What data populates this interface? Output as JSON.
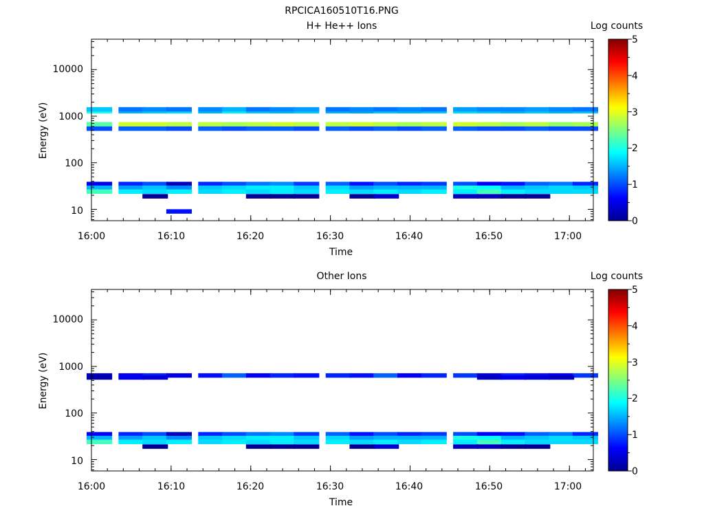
{
  "figure_title": "RPCICA160510T16.PNG",
  "chart_data": [
    {
      "type": "heatmap",
      "title": "H+ He++ Ions",
      "xlabel": "Time",
      "ylabel": "Energy (eV)",
      "x_ticks": [
        "16:00",
        "16:10",
        "16:20",
        "16:30",
        "16:40",
        "16:50",
        "17:00"
      ],
      "xlim": [
        "16:00",
        "17:03"
      ],
      "y_scale": "log",
      "y_ticks": [
        "10",
        "100",
        "1000",
        "10000"
      ],
      "ylim": [
        5.7,
        45000
      ],
      "colorbar": {
        "label": "Log counts",
        "ticks": [
          "0",
          "1",
          "2",
          "3",
          "4",
          "5"
        ],
        "range": [
          0,
          5
        ],
        "colormap": "jet"
      },
      "time_bins": [
        "16:01",
        "16:05",
        "16:08",
        "16:11",
        "16:15",
        "16:18",
        "16:21",
        "16:24",
        "16:27",
        "16:31",
        "16:34",
        "16:37",
        "16:40",
        "16:43",
        "16:47",
        "16:50",
        "16:53",
        "16:56",
        "16:59",
        "17:02"
      ],
      "bands": [
        {
          "energy_ev": 600,
          "values": [
            2.2,
            2.8,
            2.8,
            2.6,
            2.7,
            2.6,
            2.6,
            2.7,
            2.7,
            2.6,
            2.7,
            2.7,
            2.6,
            2.6,
            2.8,
            2.9,
            2.6,
            2.6,
            2.5,
            2.5
          ]
        },
        {
          "energy_ev": 670,
          "values": [
            2.3,
            2.9,
            2.9,
            2.8,
            2.8,
            2.7,
            2.8,
            2.9,
            2.8,
            2.8,
            2.9,
            2.8,
            2.7,
            2.8,
            2.9,
            2.8,
            2.7,
            2.8,
            2.6,
            2.7
          ]
        },
        {
          "energy_ev": 540,
          "values": [
            1.0,
            1.1,
            1.1,
            1.0,
            1.1,
            1.0,
            1.1,
            1.1,
            1.0,
            1.1,
            1.0,
            1.1,
            1.0,
            1.1,
            1.1,
            1.0,
            1.0,
            1.1,
            1.0,
            1.0
          ]
        },
        {
          "energy_ev": 1280,
          "values": [
            2.0,
            1.5,
            1.6,
            1.7,
            1.5,
            1.8,
            1.6,
            1.5,
            1.6,
            1.5,
            1.4,
            1.6,
            1.5,
            1.6,
            1.7,
            1.6,
            1.5,
            1.6,
            1.5,
            1.6
          ]
        },
        {
          "energy_ev": 1400,
          "values": [
            1.6,
            1.2,
            1.3,
            1.2,
            1.3,
            1.5,
            1.2,
            1.3,
            1.4,
            1.2,
            1.3,
            1.2,
            1.3,
            1.2,
            1.4,
            1.3,
            1.3,
            1.4,
            1.3,
            1.2
          ]
        },
        {
          "energy_ev": 35,
          "values": [
            0.5,
            0.8,
            1.0,
            0.3,
            0.8,
            1.0,
            1.2,
            1.3,
            0.9,
            1.1,
            0.7,
            1.0,
            0.8,
            0.9,
            1.0,
            0.6,
            0.7,
            1.1,
            1.2,
            0.8
          ]
        },
        {
          "energy_ev": 29,
          "values": [
            1.5,
            1.4,
            1.6,
            1.3,
            1.6,
            1.7,
            1.8,
            1.8,
            1.6,
            1.7,
            1.4,
            1.5,
            1.5,
            1.5,
            2.0,
            1.9,
            1.5,
            1.6,
            1.7,
            1.6
          ]
        },
        {
          "energy_ev": 24,
          "values": [
            2.2,
            1.8,
            1.7,
            1.8,
            1.7,
            1.8,
            1.7,
            1.8,
            1.7,
            1.8,
            1.7,
            1.8,
            1.7,
            1.8,
            1.8,
            2.2,
            1.8,
            1.7,
            1.7,
            1.7
          ]
        },
        {
          "energy_ev": 19,
          "values": [
            null,
            null,
            0.1,
            null,
            null,
            null,
            0.1,
            0.1,
            0.1,
            null,
            0.1,
            0.4,
            null,
            null,
            0.3,
            0.3,
            0.1,
            0.1,
            null,
            null
          ]
        },
        {
          "energy_ev": 9,
          "values": [
            null,
            null,
            null,
            0.7,
            null,
            null,
            null,
            null,
            null,
            null,
            null,
            null,
            null,
            null,
            null,
            null,
            null,
            null,
            null,
            null
          ]
        }
      ]
    },
    {
      "type": "heatmap",
      "title": "Other Ions",
      "xlabel": "Time",
      "ylabel": "Energy (eV)",
      "x_ticks": [
        "16:00",
        "16:10",
        "16:20",
        "16:30",
        "16:40",
        "16:50",
        "17:00"
      ],
      "xlim": [
        "16:00",
        "17:03"
      ],
      "y_scale": "log",
      "y_ticks": [
        "10",
        "100",
        "1000",
        "10000"
      ],
      "ylim": [
        5.7,
        45000
      ],
      "colorbar": {
        "label": "Log counts",
        "ticks": [
          "0",
          "1",
          "2",
          "3",
          "4",
          "5"
        ],
        "range": [
          0,
          5
        ],
        "colormap": "jet"
      },
      "time_bins": [
        "16:01",
        "16:05",
        "16:08",
        "16:11",
        "16:15",
        "16:18",
        "16:21",
        "16:24",
        "16:27",
        "16:31",
        "16:34",
        "16:37",
        "16:40",
        "16:43",
        "16:47",
        "16:50",
        "16:53",
        "16:56",
        "16:59",
        "17:02"
      ],
      "bands": [
        {
          "energy_ev": 640,
          "values": [
            0.4,
            0.6,
            0.8,
            0.5,
            0.7,
            1.1,
            0.6,
            0.8,
            0.7,
            0.8,
            0.7,
            1.1,
            0.6,
            0.8,
            0.9,
            0.5,
            0.8,
            0.7,
            0.6,
            0.9
          ]
        },
        {
          "energy_ev": 580,
          "values": [
            0.2,
            0.5,
            0.4,
            null,
            null,
            null,
            null,
            null,
            null,
            null,
            null,
            null,
            null,
            null,
            null,
            0.3,
            0.5,
            0.4,
            0.3,
            null
          ]
        },
        {
          "energy_ev": 35,
          "values": [
            0.6,
            0.8,
            1.0,
            0.3,
            0.8,
            1.0,
            1.2,
            1.3,
            0.9,
            1.1,
            0.7,
            1.0,
            0.8,
            0.9,
            1.0,
            0.6,
            0.7,
            1.1,
            1.2,
            0.8
          ]
        },
        {
          "energy_ev": 29,
          "values": [
            1.5,
            1.4,
            1.6,
            1.3,
            1.6,
            1.7,
            1.8,
            1.8,
            1.6,
            1.7,
            1.4,
            1.5,
            1.5,
            1.5,
            2.0,
            1.9,
            1.5,
            1.6,
            1.7,
            1.6
          ]
        },
        {
          "energy_ev": 24,
          "values": [
            2.2,
            1.8,
            1.7,
            1.8,
            1.7,
            1.8,
            1.7,
            1.8,
            1.7,
            1.8,
            1.7,
            1.8,
            1.7,
            1.8,
            1.8,
            2.2,
            1.8,
            1.7,
            1.7,
            1.7
          ]
        },
        {
          "energy_ev": 19,
          "values": [
            null,
            null,
            0.1,
            null,
            null,
            null,
            0.1,
            0.1,
            0.1,
            null,
            0.1,
            0.4,
            null,
            null,
            0.3,
            0.3,
            0.1,
            0.1,
            null,
            null
          ]
        }
      ]
    }
  ]
}
